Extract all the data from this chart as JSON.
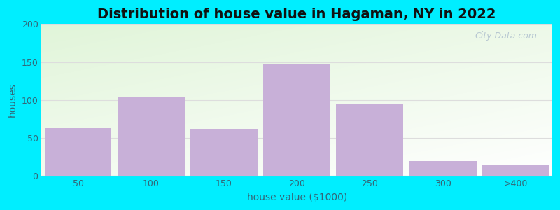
{
  "title": "Distribution of house value in Hagaman, NY in 2022",
  "xlabel": "house value ($1000)",
  "ylabel": "houses",
  "categories": [
    "50",
    "100",
    "150",
    "200",
    "250",
    "300",
    ">400"
  ],
  "values": [
    63,
    105,
    62,
    148,
    94,
    20,
    14
  ],
  "bar_color": "#c8b0d8",
  "bar_edgecolor": "none",
  "ylim": [
    0,
    200
  ],
  "yticks": [
    0,
    50,
    100,
    150,
    200
  ],
  "bg_outer": "#00eeff",
  "title_fontsize": 14,
  "axis_label_fontsize": 10,
  "tick_fontsize": 9,
  "tick_color": "#336677",
  "label_color": "#336677",
  "title_color": "#111111",
  "watermark_text": "City-Data.com",
  "watermark_color": "#aabbcc",
  "grid_color": "#dddddd"
}
